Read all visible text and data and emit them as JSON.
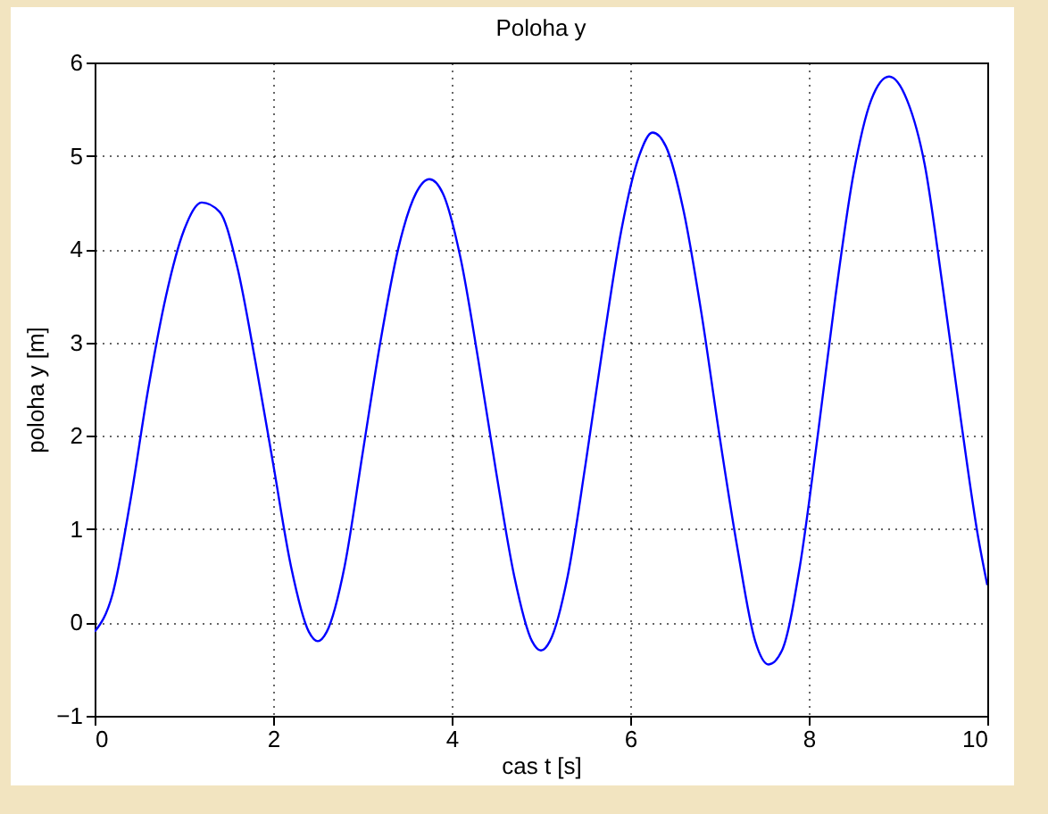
{
  "chart_data": {
    "type": "line",
    "title": "Poloha y",
    "xlabel": "cas t [s]",
    "ylabel": "poloha y [m]",
    "xlim": [
      0,
      10
    ],
    "ylim": [
      -1,
      6
    ],
    "xticks": [
      0,
      2,
      4,
      6,
      8,
      10
    ],
    "yticks": [
      -1,
      0,
      1,
      2,
      3,
      4,
      5,
      6
    ],
    "grid": true,
    "marker": "none",
    "line_style": "solid",
    "series": [
      {
        "color": "#0000ff",
        "x": [
          0,
          0.2,
          0.4,
          0.6,
          0.8,
          1.0,
          1.2,
          1.4,
          1.6,
          1.8,
          2.0,
          2.2,
          2.4,
          2.5,
          2.6,
          2.8,
          3.0,
          3.2,
          3.4,
          3.6,
          3.75,
          3.9,
          4.1,
          4.3,
          4.5,
          4.7,
          4.9,
          5.0,
          5.1,
          5.3,
          5.5,
          5.7,
          5.9,
          6.1,
          6.25,
          6.4,
          6.6,
          6.8,
          7.0,
          7.2,
          7.4,
          7.55,
          7.7,
          7.9,
          8.1,
          8.3,
          8.5,
          8.7,
          8.9,
          9.1,
          9.3,
          9.5,
          9.7,
          9.9,
          10
        ],
        "values": [
          -0.1,
          0.3,
          1.3,
          2.5,
          3.5,
          4.2,
          4.5,
          4.4,
          3.8,
          2.8,
          1.7,
          0.6,
          -0.1,
          -0.2,
          -0.1,
          0.6,
          1.8,
          3.0,
          4.0,
          4.6,
          4.75,
          4.6,
          3.9,
          2.8,
          1.6,
          0.5,
          -0.2,
          -0.3,
          -0.2,
          0.5,
          1.7,
          3.0,
          4.2,
          5.0,
          5.25,
          5.1,
          4.4,
          3.3,
          2.0,
          0.8,
          -0.2,
          -0.45,
          -0.3,
          0.6,
          2.0,
          3.5,
          4.8,
          5.6,
          5.85,
          5.6,
          4.9,
          3.6,
          2.2,
          0.9,
          0.4
        ]
      }
    ]
  }
}
